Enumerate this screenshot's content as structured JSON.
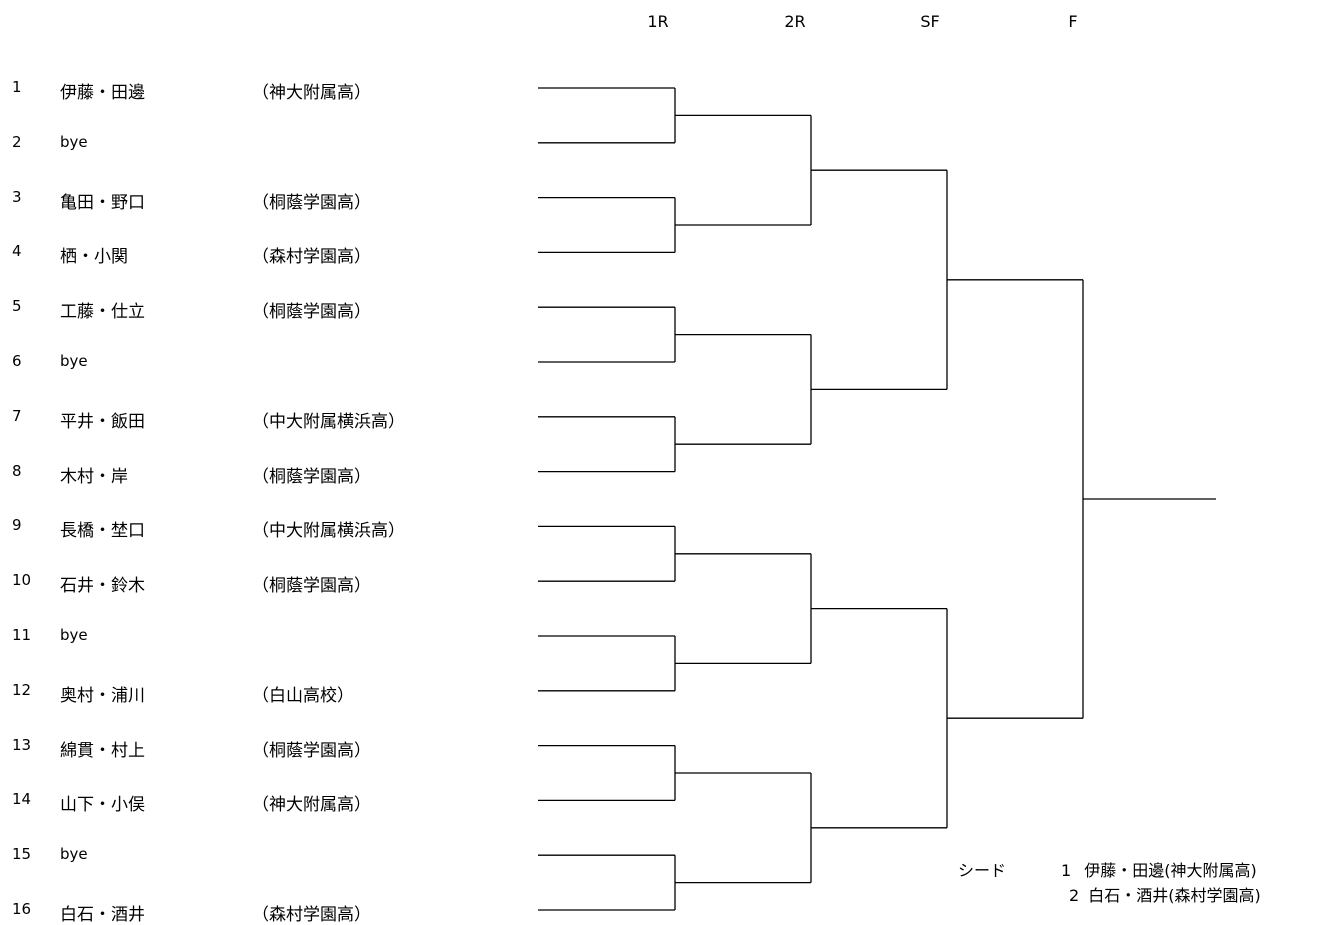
{
  "rounds": [
    "1R",
    "2R",
    "SF",
    "F"
  ],
  "entries": [
    {
      "no": "1",
      "name": "伊藤・田邊",
      "school": "（神大附属高）"
    },
    {
      "no": "2",
      "name": "bye",
      "school": ""
    },
    {
      "no": "3",
      "name": "亀田・野口",
      "school": "（桐蔭学園高）"
    },
    {
      "no": "4",
      "name": "栖・小関",
      "school": "（森村学園高）"
    },
    {
      "no": "5",
      "name": "工藤・仕立",
      "school": "（桐蔭学園高）"
    },
    {
      "no": "6",
      "name": "bye",
      "school": ""
    },
    {
      "no": "7",
      "name": "平井・飯田",
      "school": "（中大附属横浜高）"
    },
    {
      "no": "8",
      "name": "木村・岸",
      "school": "（桐蔭学園高）"
    },
    {
      "no": "9",
      "name": "長橋・埜口",
      "school": "（中大附属横浜高）"
    },
    {
      "no": "10",
      "name": "石井・鈴木",
      "school": "（桐蔭学園高）"
    },
    {
      "no": "11",
      "name": "bye",
      "school": ""
    },
    {
      "no": "12",
      "name": "奥村・浦川",
      "school": "（白山高校）"
    },
    {
      "no": "13",
      "name": "綿貫・村上",
      "school": "（桐蔭学園高）"
    },
    {
      "no": "14",
      "name": "山下・小俣",
      "school": "（神大附属高）"
    },
    {
      "no": "15",
      "name": "bye",
      "school": ""
    },
    {
      "no": "16",
      "name": "白石・酒井",
      "school": "（森村学園高）"
    }
  ],
  "seeds": {
    "label": "シード",
    "lines": [
      {
        "no": "1",
        "text": "伊藤・田邊(神大附属高)"
      },
      {
        "no": "2",
        "text": "白石・酒井(森村学園高)"
      }
    ]
  }
}
